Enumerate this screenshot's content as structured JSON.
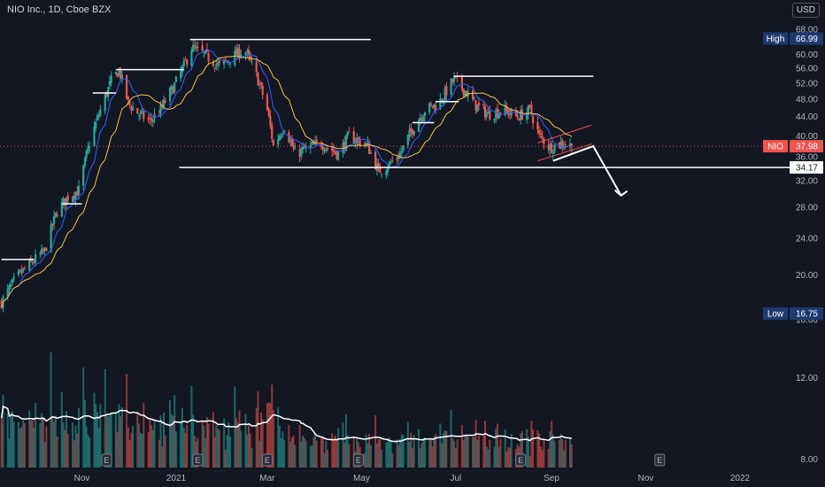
{
  "header": {
    "symbol_line": "NIO Inc., 1D, Cboe BZX",
    "currency": "USD"
  },
  "badges": {
    "high_label": "High",
    "high_value": "66.99",
    "low_label": "Low",
    "low_value": "16.75",
    "last_label": "NIO",
    "last_value": "37.98",
    "level_value": "34.17"
  },
  "colors": {
    "background": "#131722",
    "up": "#26a69a",
    "down": "#ef5350",
    "ma_fast": "#2962ff",
    "ma_slow": "#f0c04a",
    "drawing": "#ffffff",
    "channel": "#ef5350",
    "badge_blue": "#1e3a6e",
    "price_pink": "#ef5350"
  },
  "chart_data": {
    "type": "candlestick",
    "title": "NIO Inc., 1D, Cboe BZX",
    "currency": "USD",
    "y_scale": "log",
    "ylim": [
      7.6,
      72
    ],
    "grid": false,
    "y_ticks": [
      "8.00",
      "12.00",
      "16.00",
      "20.00",
      "24.00",
      "28.00",
      "32.00",
      "36.00",
      "40.00",
      "44.00",
      "48.00",
      "52.00",
      "56.00",
      "60.00",
      "64.00",
      "68.00"
    ],
    "x_ticks": [
      "Nov",
      "2021",
      "Mar",
      "May",
      "Jul",
      "Sep",
      "Nov",
      "2022"
    ],
    "x_tick_dates": [
      "2020-11-01",
      "2021-01-01",
      "2021-03-01",
      "2021-05-01",
      "2021-07-01",
      "2021-09-01",
      "2021-11-01",
      "2022-01-01"
    ],
    "x_range": [
      "2020-09-09",
      "2022-02-25"
    ],
    "price_path": [
      [
        "2020-09-10",
        17.5
      ],
      [
        "2020-09-20",
        19.8
      ],
      [
        "2020-10-01",
        21.5
      ],
      [
        "2020-10-08",
        22.5
      ],
      [
        "2020-10-16",
        27.5
      ],
      [
        "2020-10-23",
        29.5
      ],
      [
        "2020-10-30",
        30.5
      ],
      [
        "2020-11-06",
        38.5
      ],
      [
        "2020-11-13",
        45.5
      ],
      [
        "2020-11-20",
        52.5
      ],
      [
        "2020-11-25",
        55.5
      ],
      [
        "2020-12-01",
        47.0
      ],
      [
        "2020-12-08",
        44.5
      ],
      [
        "2020-12-15",
        43.0
      ],
      [
        "2020-12-22",
        45.5
      ],
      [
        "2020-12-31",
        51.5
      ],
      [
        "2021-01-06",
        56.5
      ],
      [
        "2021-01-11",
        62.0
      ],
      [
        "2021-01-19",
        60.0
      ],
      [
        "2021-01-29",
        56.5
      ],
      [
        "2021-02-09",
        60.0
      ],
      [
        "2021-02-14",
        61.5
      ],
      [
        "2021-02-22",
        54.0
      ],
      [
        "2021-03-01",
        45.5
      ],
      [
        "2021-03-05",
        38.0
      ],
      [
        "2021-03-12",
        42.0
      ],
      [
        "2021-03-19",
        36.5
      ],
      [
        "2021-03-26",
        37.5
      ],
      [
        "2021-04-05",
        38.5
      ],
      [
        "2021-04-16",
        36.5
      ],
      [
        "2021-04-23",
        40.0
      ],
      [
        "2021-05-05",
        38.0
      ],
      [
        "2021-05-12",
        33.5
      ],
      [
        "2021-05-18",
        34.5
      ],
      [
        "2021-05-26",
        36.5
      ],
      [
        "2021-06-04",
        42.0
      ],
      [
        "2021-06-11",
        45.5
      ],
      [
        "2021-06-20",
        47.0
      ],
      [
        "2021-06-25",
        50.0
      ],
      [
        "2021-06-30",
        53.0
      ],
      [
        "2021-07-07",
        50.0
      ],
      [
        "2021-07-14",
        46.5
      ],
      [
        "2021-07-22",
        44.5
      ],
      [
        "2021-08-01",
        45.5
      ],
      [
        "2021-08-10",
        44.0
      ],
      [
        "2021-08-18",
        45.5
      ],
      [
        "2021-08-24",
        40.0
      ],
      [
        "2021-08-31",
        37.8
      ],
      [
        "2021-09-08",
        38.6
      ],
      [
        "2021-09-14",
        37.98
      ]
    ],
    "indicators": [
      {
        "name": "MA fast",
        "color": "#2962ff"
      },
      {
        "name": "MA slow",
        "color": "#f0c04a"
      }
    ],
    "volume_series": "relative volume bars with white moving average line",
    "earnings_markers": [
      "2020-11-17",
      "2021-01-15",
      "2021-03-01",
      "2021-04-29",
      "2021-08-12",
      "2021-11-10"
    ],
    "annotations": [
      {
        "type": "horizontal",
        "value": 64.6,
        "from": "2021-01-10",
        "to": "2021-05-07"
      },
      {
        "type": "horizontal",
        "value": 55.6,
        "from": "2020-11-23",
        "to": "2021-01-06"
      },
      {
        "type": "horizontal",
        "value": 53.8,
        "from": "2021-06-30",
        "to": "2021-09-28"
      },
      {
        "type": "horizontal",
        "value": 49.5,
        "from": "2020-11-08",
        "to": "2020-11-23"
      },
      {
        "type": "horizontal",
        "value": 47.4,
        "from": "2021-06-18",
        "to": "2021-07-03"
      },
      {
        "type": "horizontal",
        "value": 42.7,
        "from": "2021-06-03",
        "to": "2021-06-17"
      },
      {
        "type": "horizontal",
        "value": 34.17,
        "from": "2021-01-03",
        "to": "2022-02-25"
      },
      {
        "type": "horizontal",
        "value": 28.5,
        "from": "2020-10-19",
        "to": "2020-11-01"
      },
      {
        "type": "horizontal",
        "value": 21.6,
        "from": "2020-09-10",
        "to": "2020-10-01"
      }
    ],
    "drawings": [
      {
        "type": "channel",
        "color": "#ef5350",
        "points": [
          [
            "2021-08-23",
            38.6
          ],
          [
            "2021-09-27",
            42.2
          ],
          [
            "2021-08-23",
            35.3
          ],
          [
            "2021-09-27",
            38.4
          ]
        ]
      },
      {
        "type": "arrow",
        "color": "#ffffff",
        "points": [
          [
            "2021-09-02",
            35.3
          ],
          [
            "2021-09-28",
            38.0
          ],
          [
            "2021-10-16",
            29.7
          ]
        ]
      }
    ],
    "last_price": 37.98,
    "high": 66.99,
    "low": 16.75
  }
}
